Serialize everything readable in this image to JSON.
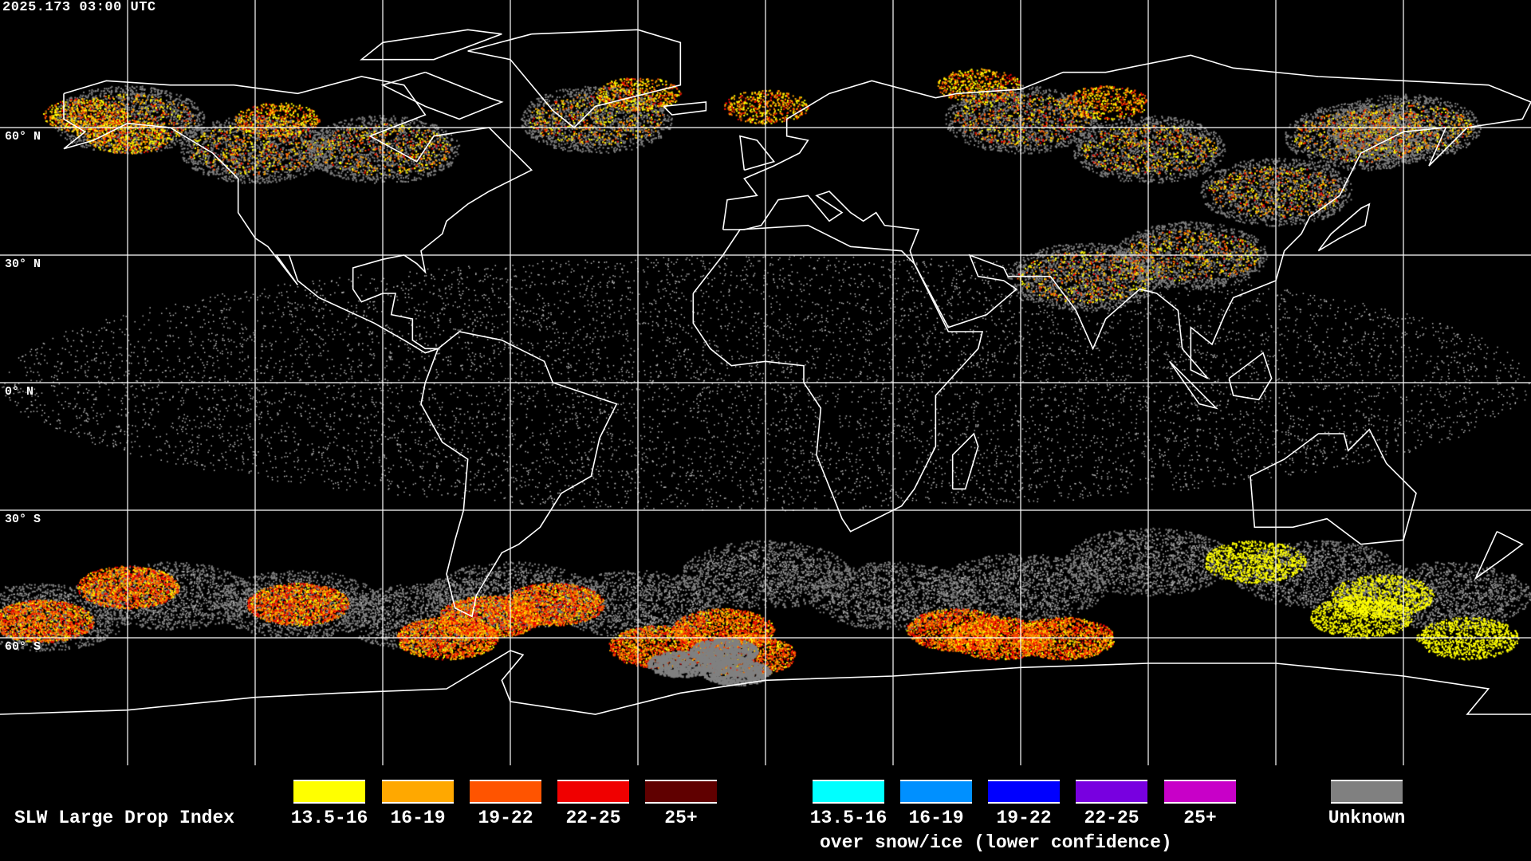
{
  "timestamp": "2025.173 03:00 UTC",
  "lat_labels": [
    "60° N",
    "30° N",
    "0° N",
    "30° S",
    "60° S"
  ],
  "legend": {
    "title": "SLW Large Drop Index",
    "items": [
      {
        "label": "13.5-16",
        "color": "#ffff00"
      },
      {
        "label": "16-19",
        "color": "#ffa800"
      },
      {
        "label": "19-22",
        "color": "#ff5400"
      },
      {
        "label": "22-25",
        "color": "#f00000"
      },
      {
        "label": "25+",
        "color": "#600000"
      }
    ],
    "snow_items": [
      {
        "label": "13.5-16",
        "color": "#00ffff"
      },
      {
        "label": "16-19",
        "color": "#0090ff"
      },
      {
        "label": "19-22",
        "color": "#0000ff"
      },
      {
        "label": "22-25",
        "color": "#7800e0"
      },
      {
        "label": "25+",
        "color": "#c800c8"
      }
    ],
    "snow_caption": "over snow/ice (lower confidence)",
    "unknown": {
      "label": "Unknown",
      "color": "#808080"
    }
  },
  "map": {
    "projection": "equirectangular",
    "grid_spacing_deg": 30,
    "coastline_color": "#ffffff",
    "grid_color": "#ffffff"
  }
}
